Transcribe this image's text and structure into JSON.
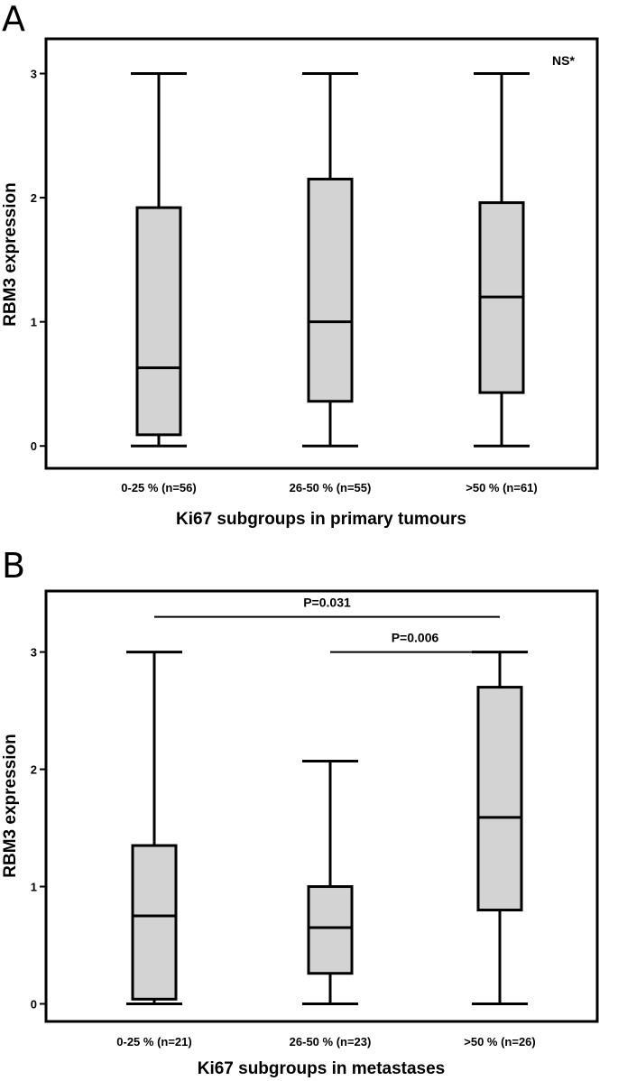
{
  "chart_data": [
    {
      "panel": "A",
      "type": "boxplot",
      "title": "",
      "xlabel": "Ki67 subgroups in primary tumours",
      "ylabel": "RBM3 expression",
      "ylim": [
        -0.18,
        3.28
      ],
      "yticks": [
        0,
        1,
        2,
        3
      ],
      "categories": [
        "0-25 % (n=56)",
        "26-50 % (n=55)",
        ">50 % (n=61)"
      ],
      "boxes": [
        {
          "min": 0,
          "q1": 0.09,
          "median": 0.63,
          "q3": 1.92,
          "max": 3
        },
        {
          "min": 0,
          "q1": 0.36,
          "median": 1.0,
          "q3": 2.15,
          "max": 3
        },
        {
          "min": 0,
          "q1": 0.43,
          "median": 1.2,
          "q3": 1.96,
          "max": 3
        }
      ],
      "annotations": [
        {
          "text": "NS*",
          "position": "top-right"
        }
      ],
      "significance_bars": []
    },
    {
      "panel": "B",
      "type": "boxplot",
      "title": "",
      "xlabel": "Ki67 subgroups in metastases",
      "ylabel": "RBM3 expression",
      "ylim": [
        -0.15,
        3.52
      ],
      "yticks": [
        0,
        1,
        2,
        3
      ],
      "categories": [
        "0-25 % (n=21)",
        "26-50 % (n=23)",
        ">50 % (n=26)"
      ],
      "boxes": [
        {
          "min": 0,
          "q1": 0.04,
          "median": 0.75,
          "q3": 1.35,
          "max": 3
        },
        {
          "min": 0,
          "q1": 0.26,
          "median": 0.65,
          "q3": 1.0,
          "max": 2.07
        },
        {
          "min": 0,
          "q1": 0.8,
          "median": 1.59,
          "q3": 2.7,
          "max": 3
        }
      ],
      "annotations": [],
      "significance_bars": [
        {
          "from": 0,
          "to": 2,
          "y": 3.3,
          "label": "P=0.031"
        },
        {
          "from": 1,
          "to": 2,
          "y": 3.0,
          "label": "P=0.006"
        }
      ]
    }
  ]
}
